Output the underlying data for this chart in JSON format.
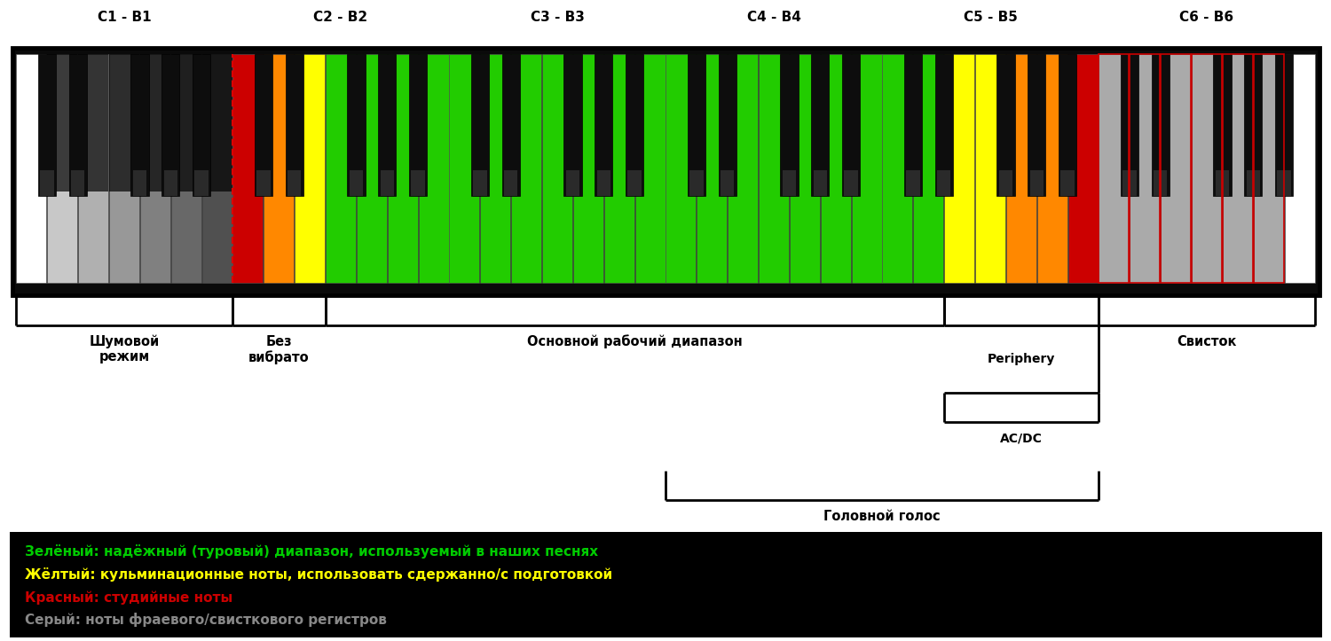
{
  "octave_labels": [
    "C1 - B1",
    "C2 - B2",
    "C3 - B3",
    "C4 - B4",
    "C5 - B5",
    "C6 - B6"
  ],
  "white_key_colors": [
    "white",
    "#c8c8c8",
    "#b0b0b0",
    "#989898",
    "#808080",
    "#686868",
    "#505050",
    "#cc0000",
    "#ff8800",
    "#ffff00",
    "#22cc00",
    "#22cc00",
    "#22cc00",
    "#22cc00",
    "#22cc00",
    "#22cc00",
    "#22cc00",
    "#22cc00",
    "#22cc00",
    "#22cc00",
    "#22cc00",
    "#22cc00",
    "#22cc00",
    "#22cc00",
    "#22cc00",
    "#22cc00",
    "#22cc00",
    "#22cc00",
    "#22cc00",
    "#22cc00",
    "#ffff00",
    "#ffff00",
    "#ff8800",
    "#ff8800",
    "#cc0000",
    "#aaaaaa",
    "#aaaaaa",
    "#aaaaaa",
    "#aaaaaa",
    "#aaaaaa",
    "#aaaaaa",
    "white"
  ],
  "legend_items": [
    {
      "text": "Зелёный: надёжный (туровый) диапазон, используемый в наших песнях",
      "color": "#00cc00"
    },
    {
      "text": "Жёлтый: кульминационные ноты, использовать сдержанно/с подготовкой",
      "color": "#ffff00"
    },
    {
      "text": "Красный: студийные ноты",
      "color": "#cc0000"
    },
    {
      "text": "Серый: ноты фраевого/свисткового регистров",
      "color": "#888888"
    }
  ],
  "background_color": "#ffffff"
}
